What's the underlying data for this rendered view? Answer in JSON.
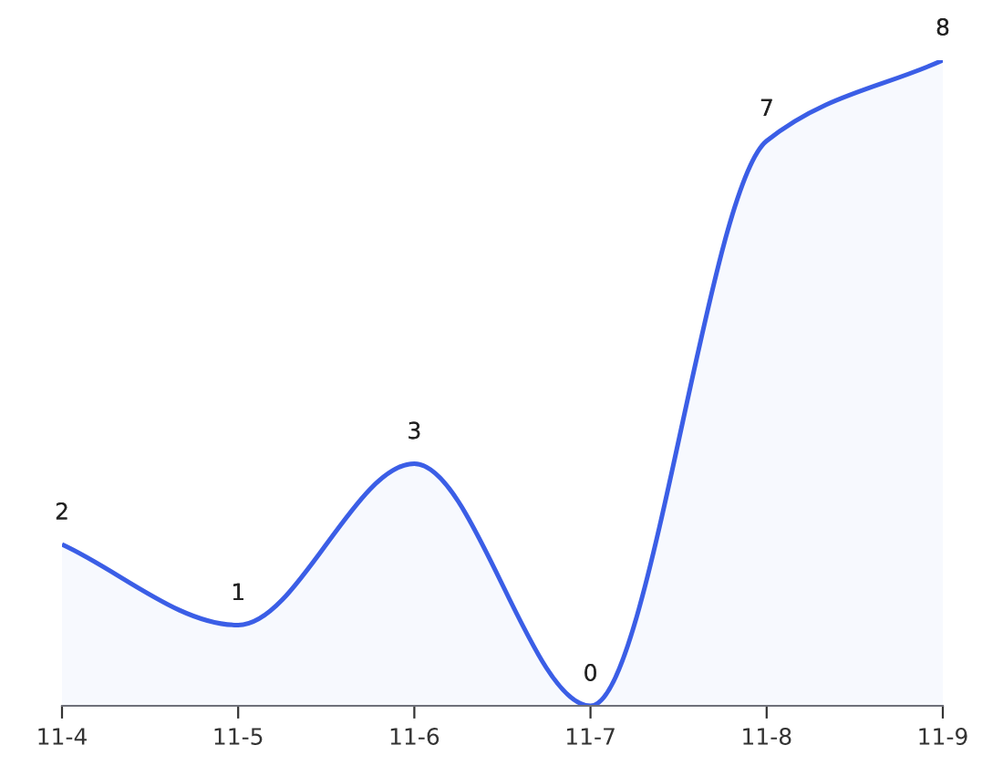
{
  "chart_data": {
    "type": "area",
    "categories": [
      "11-4",
      "11-5",
      "11-6",
      "11-7",
      "11-8",
      "11-9"
    ],
    "series": [
      {
        "color": "#3b5ee6",
        "values": [
          2,
          1,
          3,
          0,
          7,
          8
        ]
      }
    ],
    "data_labels": true,
    "grid": false,
    "legend": false,
    "tick_labels": "x",
    "marker": "none",
    "line_style": "solid"
  }
}
